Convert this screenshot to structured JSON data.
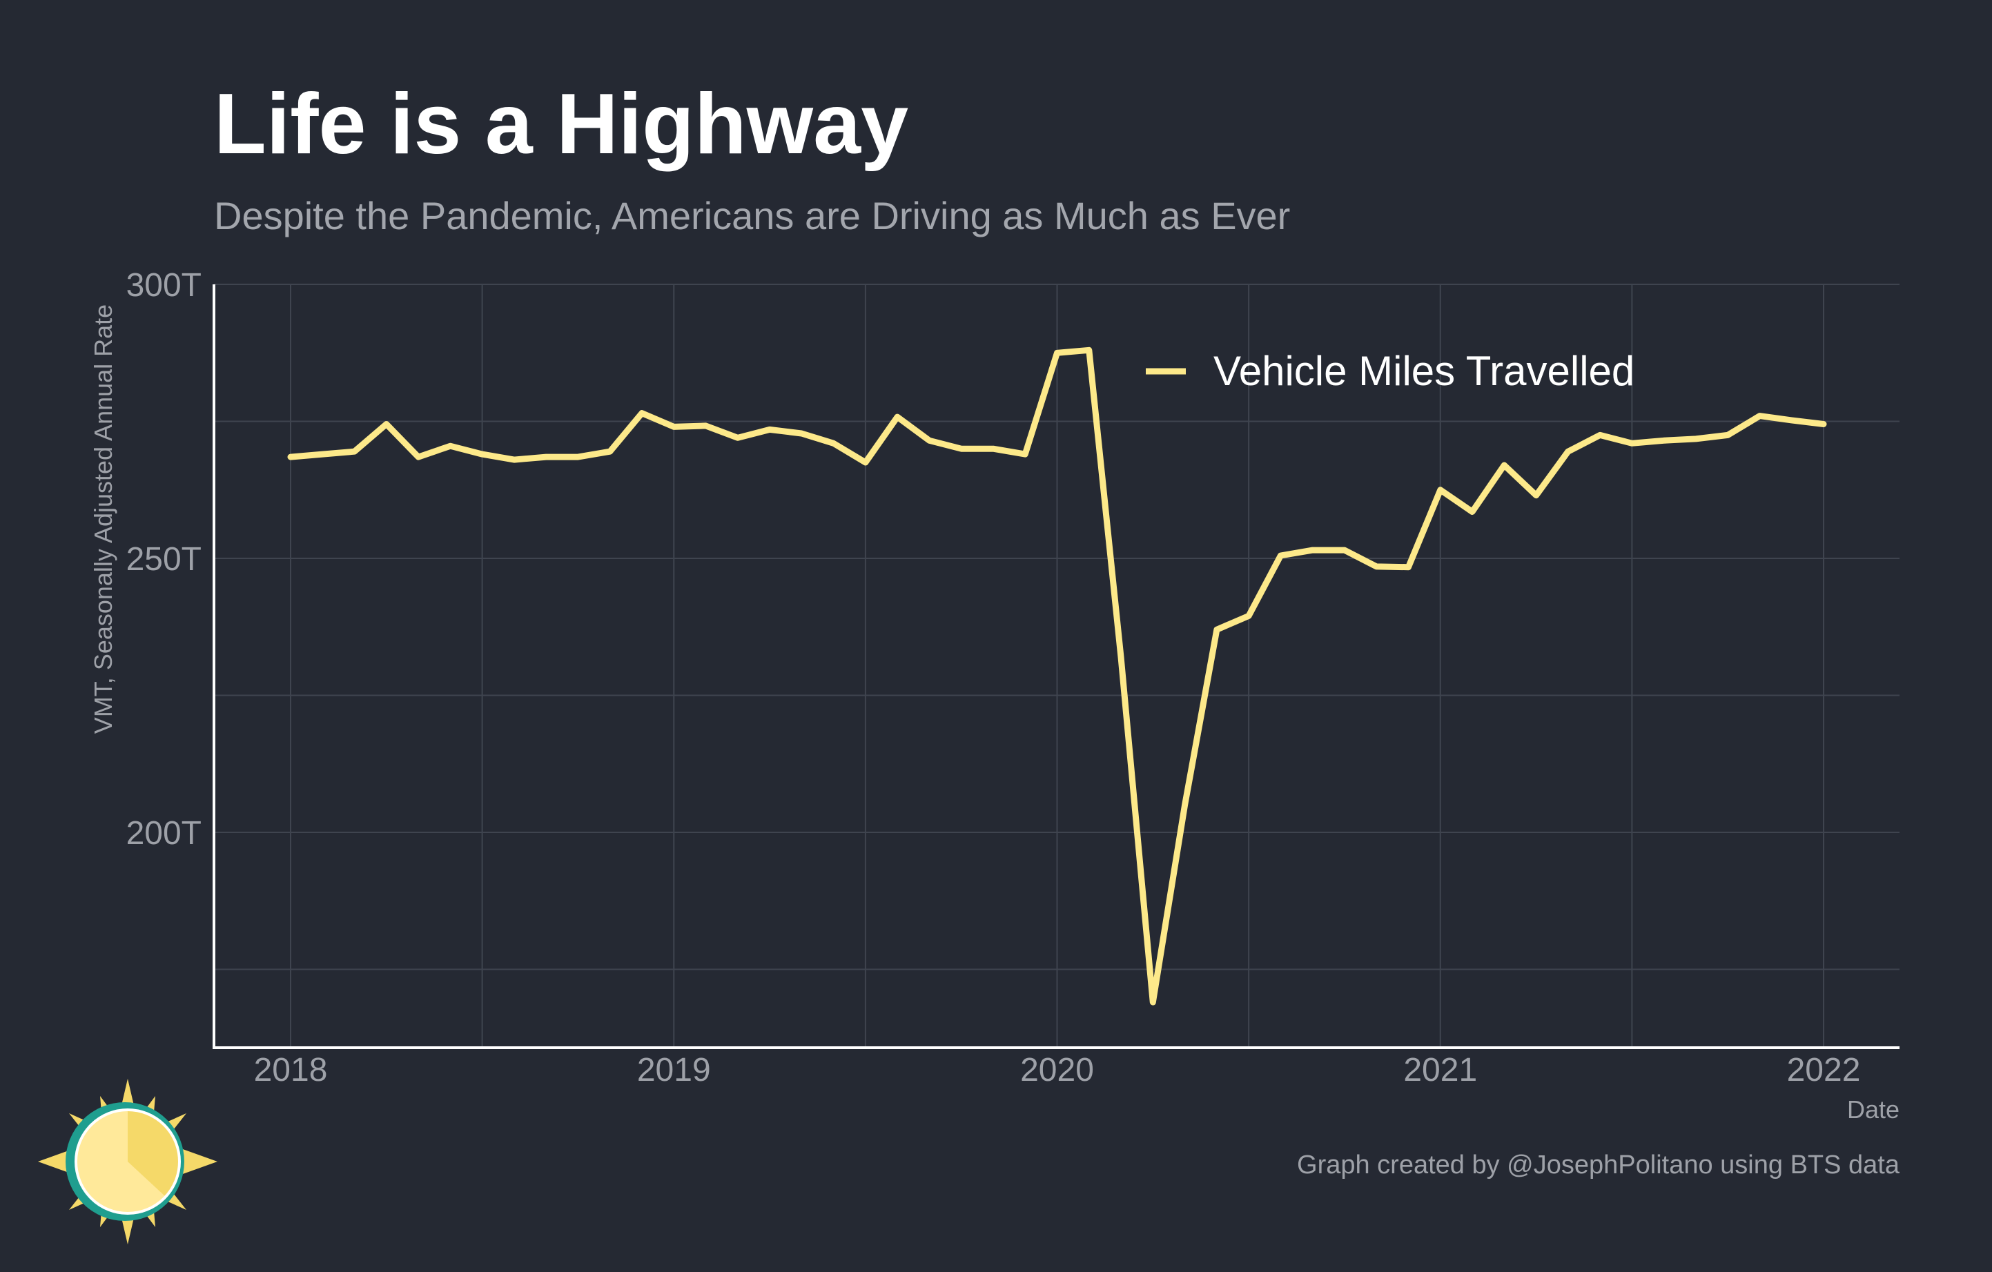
{
  "chart_data": {
    "type": "line",
    "title": "Life is a Highway",
    "subtitle": "Despite the Pandemic, Americans are Driving as Much as Ever",
    "xlabel": "Date",
    "ylabel": "VMT, Seasonally Adjusted Annual Rate",
    "caption": "Graph created by @JosephPolitano using BTS data",
    "x_start": "2018-01",
    "x_ticks": [
      "2018",
      "2019",
      "2020",
      "2021",
      "2022"
    ],
    "y_ticks": [
      "200T",
      "250T",
      "300T"
    ],
    "y_tick_values": [
      200,
      250,
      300
    ],
    "ylim": [
      160,
      300
    ],
    "xlim": [
      "2017-10",
      "2022-03"
    ],
    "grid": true,
    "legend_position": "top-center",
    "series": [
      {
        "name": "Vehicle Miles Travelled",
        "color": "#fde98a",
        "values": [
          268.5,
          269.0,
          269.5,
          274.5,
          268.5,
          270.5,
          269.0,
          268.0,
          268.5,
          268.5,
          269.5,
          276.5,
          274.0,
          274.2,
          272.0,
          273.5,
          272.8,
          271.0,
          267.5,
          275.8,
          271.5,
          270.0,
          270.0,
          269.0,
          287.5,
          288.0,
          232.0,
          169.0,
          205.0,
          237.0,
          239.5,
          250.5,
          251.5,
          251.5,
          248.5,
          248.4,
          262.5,
          258.5,
          267.0,
          261.5,
          269.5,
          272.5,
          271.0,
          271.5,
          271.8,
          272.5,
          276.0,
          275.2,
          274.5
        ]
      }
    ]
  },
  "logo": {
    "icon": "sun-icon",
    "colors": [
      "#f5d969",
      "#1f9e8f",
      "#ffe99a"
    ]
  }
}
